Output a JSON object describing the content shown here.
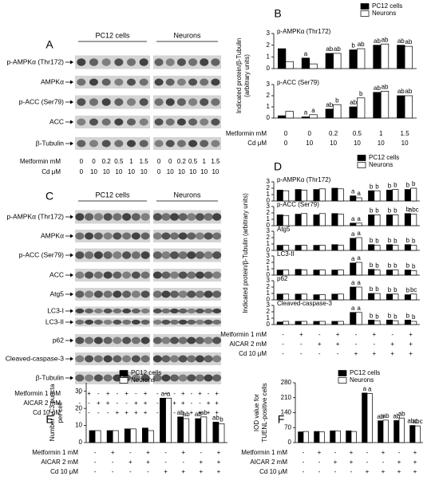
{
  "blots": [
    {
      "label": "A",
      "groups": [
        "PC12 cells",
        "Neurons"
      ],
      "rows": [
        "p-AMPKα (Thr172)",
        "AMPKα",
        "p-ACC (Ser79)",
        "ACC",
        "β-Tubulin"
      ],
      "x_rows": [
        {
          "label": "Metformin mM",
          "values": [
            "0",
            "0",
            "0.2",
            "0.5",
            "1",
            "1.5",
            "0",
            "0",
            "0.2",
            "0.5",
            "1",
            "1.5"
          ]
        },
        {
          "label": "Cd μM",
          "values": [
            "0",
            "10",
            "10",
            "10",
            "10",
            "10",
            "0",
            "10",
            "10",
            "10",
            "10",
            "10"
          ]
        }
      ]
    },
    {
      "label": "C",
      "groups": [
        "PC12 cells",
        "Neurons"
      ],
      "rows": [
        "p-AMPKα (Thr172)",
        "AMPKα",
        "p-ACC (Ser79)",
        "ACC",
        "Atg5",
        "LC3-I",
        "LC3-II",
        "p62",
        "Cleaved-caspase-3",
        "β-Tubulin"
      ],
      "x_rows": [
        {
          "label": "Metformin 1 mM",
          "values": [
            "-",
            "+",
            "-",
            "+",
            "-",
            "+",
            "-",
            "+",
            "-",
            "+",
            "-",
            "+",
            "-",
            "+",
            "-",
            "+"
          ]
        },
        {
          "label": "AICAR 2 mM",
          "values": [
            "-",
            "-",
            "+",
            "+",
            "-",
            "-",
            "+",
            "+",
            "-",
            "-",
            "+",
            "+",
            "-",
            "-",
            "+",
            "+"
          ]
        },
        {
          "label": "Cd 10 μM",
          "values": [
            "-",
            "-",
            "-",
            "-",
            "+",
            "+",
            "+",
            "+",
            "-",
            "-",
            "-",
            "-",
            "+",
            "+",
            "+",
            "+"
          ]
        }
      ]
    }
  ],
  "chart_data": [
    {
      "type": "bar",
      "label": "B",
      "y_label": [
        "Indicated protein/β-Tubulin",
        "(arbitrary units)"
      ],
      "series": [
        {
          "name": "PC12 cells",
          "color": "#000000"
        },
        {
          "name": "Neurons",
          "color": "#ffffff"
        }
      ],
      "x_rows": [
        {
          "label": "Metformin mM",
          "values": [
            "0",
            "0",
            "0.2",
            "0.5",
            "1",
            "1.5"
          ]
        },
        {
          "label": "Cd μM",
          "values": [
            "0",
            "10",
            "10",
            "10",
            "10",
            "10"
          ]
        }
      ],
      "subplots": [
        {
          "title": "p-AMPKα (Thr172)",
          "ylim": [
            0,
            3
          ],
          "yticks": [
            0,
            1,
            2,
            3
          ],
          "series": [
            {
              "values": [
                1.7,
                0.9,
                1.3,
                1.6,
                2.0,
                2.0
              ],
              "labels": [
                null,
                "a",
                "ab",
                "b",
                "ab",
                "ab"
              ]
            },
            {
              "values": [
                0.6,
                0.4,
                1.3,
                1.7,
                2.1,
                1.9
              ],
              "labels": [
                null,
                null,
                "ab",
                "ab",
                "ab",
                "ab"
              ]
            }
          ]
        },
        {
          "title": "p-ACC (Ser79)",
          "ylim": [
            0,
            3
          ],
          "yticks": [
            0,
            1,
            2,
            3
          ],
          "series": [
            {
              "values": [
                0.2,
                0.1,
                0.8,
                1.0,
                2.3,
                2.0
              ],
              "labels": [
                null,
                "a",
                "ab",
                "ab",
                "ab",
                "ab"
              ]
            },
            {
              "values": [
                0.6,
                0.3,
                1.2,
                1.8,
                2.4,
                2.0
              ],
              "labels": [
                null,
                "a",
                "b",
                "b",
                "ab",
                "ab"
              ]
            }
          ]
        }
      ]
    },
    {
      "type": "bar",
      "label": "D",
      "y_label": [
        "Indicated protein/β-Tubulin (arbitrary units)"
      ],
      "series": [
        {
          "name": "PC12 cells",
          "color": "#000000"
        },
        {
          "name": "Neurons",
          "color": "#ffffff"
        }
      ],
      "x_rows": [
        {
          "label": "Metformin 1 mM",
          "values": [
            "-",
            "+",
            "-",
            "+",
            "-",
            "+",
            "-",
            "+"
          ]
        },
        {
          "label": "AICAR 2 mM",
          "values": [
            "-",
            "-",
            "+",
            "+",
            "-",
            "-",
            "+",
            "+"
          ]
        },
        {
          "label": "Cd 10 μM",
          "values": [
            "-",
            "-",
            "-",
            "-",
            "+",
            "+",
            "+",
            "+"
          ]
        }
      ],
      "subplots": [
        {
          "title": "p-AMPKα (Thr172)",
          "ylim": [
            0,
            3
          ],
          "yticks": [
            0,
            1,
            2,
            3
          ],
          "series": [
            {
              "values": [
                1.7,
                1.8,
                1.8,
                2.0,
                0.8,
                1.6,
                1.7,
                1.8
              ],
              "labels": [
                null,
                null,
                null,
                null,
                "a",
                "b",
                "b",
                "b"
              ]
            },
            {
              "values": [
                1.6,
                1.7,
                1.9,
                1.9,
                0.5,
                1.6,
                1.8,
                2.0
              ],
              "labels": [
                null,
                null,
                null,
                null,
                "a",
                "b",
                "b",
                "b"
              ]
            }
          ]
        },
        {
          "title": "p-ACC (Ser79)",
          "ylim": [
            0,
            3
          ],
          "yticks": [
            0,
            1,
            2,
            3
          ],
          "series": [
            {
              "values": [
                1.7,
                1.8,
                1.7,
                1.9,
                0.4,
                1.7,
                1.7,
                1.9
              ],
              "labels": [
                null,
                null,
                null,
                null,
                "a",
                "b",
                "b",
                "b"
              ]
            },
            {
              "values": [
                1.6,
                1.9,
                1.9,
                1.8,
                0.4,
                1.7,
                1.7,
                1.8
              ],
              "labels": [
                null,
                null,
                null,
                null,
                "a",
                "b",
                "b",
                "abc"
              ]
            }
          ]
        },
        {
          "title": "Atg5",
          "ylim": [
            0,
            3
          ],
          "yticks": [
            0,
            1,
            2,
            3
          ],
          "series": [
            {
              "values": [
                0.8,
                0.8,
                0.8,
                0.9,
                1.9,
                0.9,
                0.9,
                0.9
              ],
              "labels": [
                null,
                null,
                null,
                null,
                "a",
                "b",
                "b",
                "b"
              ]
            },
            {
              "values": [
                0.8,
                0.8,
                0.8,
                0.8,
                2.0,
                0.8,
                0.8,
                0.8
              ],
              "labels": [
                null,
                null,
                null,
                null,
                "a",
                "b",
                "b",
                "b"
              ]
            }
          ]
        },
        {
          "title": "LC3-II",
          "ylim": [
            0,
            3
          ],
          "yticks": [
            0,
            1,
            2,
            3
          ],
          "series": [
            {
              "values": [
                0.8,
                0.9,
                0.8,
                0.8,
                1.9,
                0.9,
                0.8,
                0.8
              ],
              "labels": [
                null,
                null,
                null,
                null,
                "a",
                "b",
                "b",
                "b"
              ]
            },
            {
              "values": [
                0.8,
                0.8,
                0.8,
                0.8,
                2.0,
                0.8,
                0.8,
                0.7
              ],
              "labels": [
                null,
                null,
                null,
                null,
                "a",
                "b",
                "b",
                "b"
              ]
            }
          ]
        },
        {
          "title": "p62",
          "ylim": [
            0,
            3
          ],
          "yticks": [
            0,
            1,
            2,
            3
          ],
          "series": [
            {
              "values": [
                0.9,
                0.9,
                0.8,
                0.9,
                2.0,
                1.0,
                0.9,
                0.8
              ],
              "labels": [
                null,
                null,
                null,
                null,
                "a",
                "b",
                "b",
                "b"
              ]
            },
            {
              "values": [
                0.9,
                0.9,
                0.8,
                0.9,
                2.0,
                1.0,
                0.9,
                0.9
              ],
              "labels": [
                null,
                null,
                null,
                null,
                "a",
                "b",
                "b",
                "bc"
              ]
            }
          ]
        },
        {
          "title": "Cleaved-caspase-3",
          "ylim": [
            0,
            3
          ],
          "yticks": [
            0,
            1,
            2,
            3
          ],
          "series": [
            {
              "values": [
                0.4,
                0.5,
                0.5,
                0.5,
                1.9,
                0.7,
                0.7,
                0.7
              ],
              "labels": [
                null,
                null,
                null,
                null,
                "a",
                "b",
                "b",
                "b"
              ]
            },
            {
              "values": [
                0.5,
                0.5,
                0.5,
                0.5,
                1.9,
                0.6,
                0.6,
                0.5
              ],
              "labels": [
                null,
                null,
                null,
                null,
                "a",
                "b",
                "b",
                "b"
              ]
            }
          ]
        }
      ]
    },
    {
      "type": "bar",
      "label": "E",
      "y_label": [
        "Number LC3 puncta",
        "per cell"
      ],
      "series": [
        {
          "name": "PC12 cells",
          "color": "#000000"
        },
        {
          "name": "Neurons",
          "color": "#ffffff"
        }
      ],
      "x_rows": [
        {
          "label": "Metformin 1 mM",
          "values": [
            "-",
            "+",
            "-",
            "+",
            "-",
            "+",
            "-",
            "+"
          ]
        },
        {
          "label": "AICAR 2 mM",
          "values": [
            "-",
            "-",
            "+",
            "+",
            "-",
            "-",
            "+",
            "+"
          ]
        },
        {
          "label": "Cd 10 μM",
          "values": [
            "-",
            "-",
            "-",
            "-",
            "+",
            "+",
            "+",
            "+"
          ]
        }
      ],
      "subplots": [
        {
          "ylim": [
            0,
            35
          ],
          "yticks": [
            0,
            10,
            20,
            30
          ],
          "series": [
            {
              "values": [
                7,
                7,
                8,
                8.5,
                26,
                15,
                14,
                12
              ],
              "labels": [
                null,
                null,
                null,
                null,
                "a",
                "ab",
                "ab",
                "ab"
              ]
            },
            {
              "values": [
                7,
                7,
                8,
                7,
                26,
                14,
                15,
                11
              ],
              "labels": [
                null,
                null,
                null,
                null,
                "a",
                "ab",
                "ab",
                "b"
              ]
            }
          ]
        }
      ]
    },
    {
      "type": "bar",
      "label": "F",
      "y_label": [
        "IOD value for",
        "TUENL-positive cells"
      ],
      "series": [
        {
          "name": "PC12 cells",
          "color": "#000000"
        },
        {
          "name": "Neurons",
          "color": "#ffffff"
        }
      ],
      "x_rows": [
        {
          "label": "Metformin 1 mM",
          "values": [
            "-",
            "+",
            "-",
            "+",
            "-",
            "+",
            "-",
            "+"
          ]
        },
        {
          "label": "AICAR 2 mM",
          "values": [
            "-",
            "-",
            "+",
            "+",
            "-",
            "-",
            "+",
            "+"
          ]
        },
        {
          "label": "Cd 10 μM",
          "values": [
            "-",
            "-",
            "-",
            "-",
            "+",
            "+",
            "+",
            "+"
          ]
        }
      ],
      "subplots": [
        {
          "ylim": [
            0,
            280
          ],
          "yticks": [
            0,
            70,
            140,
            210,
            280
          ],
          "series": [
            {
              "values": [
                50,
                52,
                55,
                55,
                232,
                102,
                103,
                80
              ],
              "labels": [
                null,
                null,
                null,
                null,
                "a",
                "ab",
                "ab",
                "abc"
              ]
            },
            {
              "values": [
                52,
                50,
                55,
                52,
                230,
                105,
                115,
                78
              ],
              "labels": [
                null,
                null,
                null,
                null,
                "a",
                "ab",
                "ab",
                "abc"
              ]
            }
          ]
        }
      ]
    }
  ]
}
